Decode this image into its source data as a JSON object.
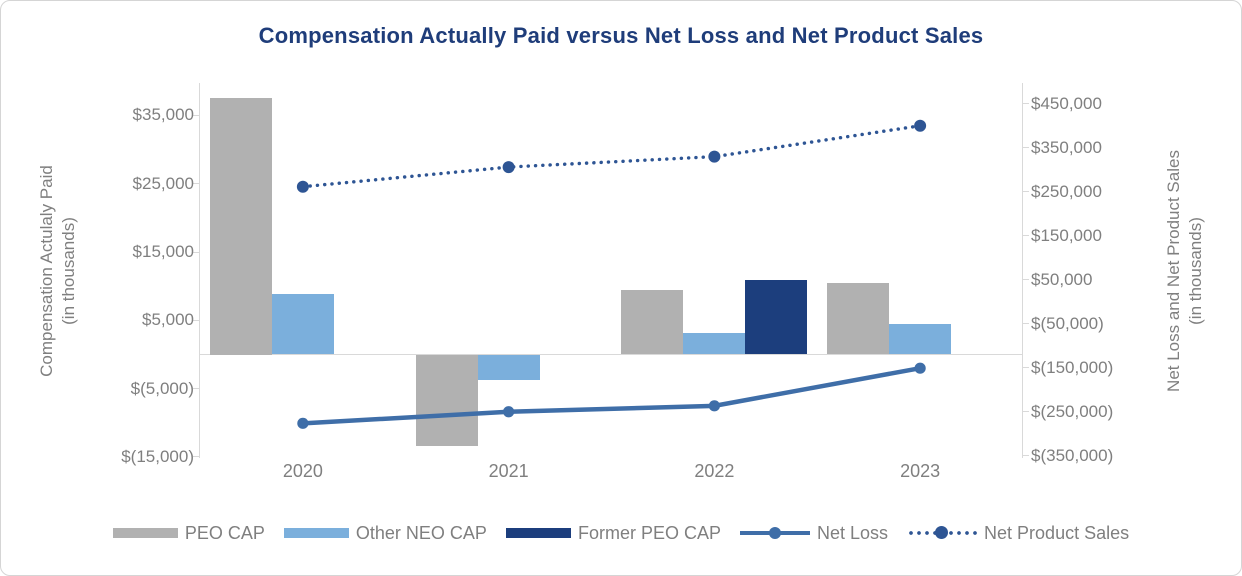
{
  "title": "Compensation Actually Paid versus Net Loss and Net Product Sales",
  "colors": {
    "peo_cap": "#B1B1B1",
    "other_neo_cap": "#7BAFDC",
    "former_peo_cap": "#1C3E7D",
    "net_loss": "#3F6EA8",
    "net_product_sales": "#2E5594",
    "title_text": "#1F3D7A",
    "axis_text": "#7F7F7F",
    "axis_line": "#D9D9D9",
    "border": "#D5D5D5"
  },
  "chart_data": {
    "type": "bar",
    "subtype": "clustered-bar-with-lines-dual-axis",
    "title": "Compensation Actually Paid versus Net Loss and Net Product Sales",
    "categories": [
      "2020",
      "2021",
      "2022",
      "2023"
    ],
    "bar_series": [
      {
        "name": "PEO CAP",
        "axis": "left",
        "color_key": "peo_cap",
        "values": [
          37500,
          -13400,
          9400,
          10500
        ]
      },
      {
        "name": "Other NEO CAP",
        "axis": "left",
        "color_key": "other_neo_cap",
        "values": [
          8900,
          -3700,
          3200,
          4400
        ]
      },
      {
        "name": "Former PEO CAP",
        "axis": "left",
        "color_key": "former_peo_cap",
        "values": [
          null,
          null,
          10900,
          null
        ]
      }
    ],
    "line_series": [
      {
        "name": "Net Loss",
        "axis": "right",
        "style": "solid",
        "color_key": "net_loss",
        "values": [
          -276900,
          -250600,
          -237100,
          -151600
        ]
      },
      {
        "name": "Net Product Sales",
        "axis": "right",
        "style": "dotted",
        "color_key": "net_product_sales",
        "values": [
          260900,
          305500,
          329200,
          399400
        ]
      }
    ],
    "left_axis": {
      "title_line1": "Compensation Actulaly Paid",
      "title_line2": "(in thousands)",
      "ylim": [
        -15000,
        40000
      ],
      "ticks": [
        {
          "value": 35000,
          "label": "$35,000"
        },
        {
          "value": 25000,
          "label": "$25,000"
        },
        {
          "value": 15000,
          "label": "$15,000"
        },
        {
          "value": 5000,
          "label": "$5,000"
        },
        {
          "value": -5000,
          "label": "$(5,000)"
        },
        {
          "value": -15000,
          "label": "$(15,000)"
        }
      ]
    },
    "right_axis": {
      "title_line1": "Net Loss and Net Product Sales",
      "title_line2": "(in thousands)",
      "ylim": [
        -350000,
        500000
      ],
      "ticks": [
        {
          "value": 450000,
          "label": "$450,000"
        },
        {
          "value": 350000,
          "label": "$350,000"
        },
        {
          "value": 250000,
          "label": "$250,000"
        },
        {
          "value": 150000,
          "label": "$150,000"
        },
        {
          "value": 50000,
          "label": "$50,000"
        },
        {
          "value": -50000,
          "label": "$(50,000)"
        },
        {
          "value": -150000,
          "label": "$(150,000)"
        },
        {
          "value": -250000,
          "label": "$(250,000)"
        },
        {
          "value": -350000,
          "label": "$(350,000)"
        }
      ]
    },
    "grid": "none (tick marks only, category baseline at zero of left axis)",
    "legend_position": "bottom-center",
    "legend": [
      {
        "label": "PEO CAP",
        "type": "bar",
        "color_key": "peo_cap"
      },
      {
        "label": "Other NEO CAP",
        "type": "bar",
        "color_key": "other_neo_cap"
      },
      {
        "label": "Former PEO CAP",
        "type": "bar",
        "color_key": "former_peo_cap"
      },
      {
        "label": "Net Loss",
        "type": "line-solid",
        "color_key": "net_loss"
      },
      {
        "label": "Net Product Sales",
        "type": "line-dotted",
        "color_key": "net_product_sales"
      }
    ]
  }
}
